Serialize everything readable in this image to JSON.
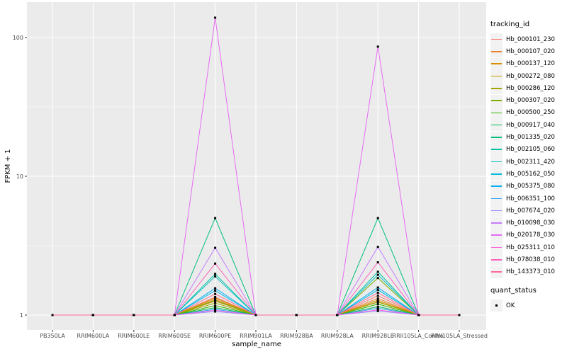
{
  "figure": {
    "panel_background": "#EBEBEB",
    "gridline_color": "#FFFFFF",
    "axis_text_color": "#4D4D4D",
    "axis_title_color": "#000000",
    "tick_mark_color": "#333333",
    "point_color": "#000000"
  },
  "legend": {
    "tracking_title": "tracking_id",
    "quant_title": "quant_status",
    "quant_items": [
      {
        "label": "OK",
        "marker": "black-square"
      }
    ]
  },
  "chart_data": {
    "type": "line",
    "title": "",
    "xlabel": "sample_name",
    "ylabel": "FPKM + 1",
    "yscale": "log10",
    "ylim": [
      1,
      180
    ],
    "y_major_ticks": [
      1,
      10,
      100
    ],
    "y_tick_labels": [
      "1",
      "10",
      "100"
    ],
    "grid": true,
    "legend_position": "right",
    "point_marker": "black-square",
    "x": [
      "PB350LA",
      "RRIM600LA",
      "RRIM600LE",
      "RRIM600SE",
      "RRIM600PE",
      "RRIM901LA",
      "RRIM928BA",
      "RRIM928LA",
      "RRIM928LE",
      "RRII105LA_Control",
      "RRII105LA_Stressed"
    ],
    "series": [
      {
        "name": "Hb_000101_230",
        "color": "#F8766D",
        "values": [
          1,
          1,
          1,
          1,
          1.35,
          1,
          1,
          1,
          1.38,
          1,
          1
        ]
      },
      {
        "name": "Hb_000107_020",
        "color": "#EA8331",
        "values": [
          1,
          1,
          1,
          1,
          1.3,
          1,
          1,
          1,
          1.32,
          1,
          1
        ]
      },
      {
        "name": "Hb_000137_120",
        "color": "#D89000",
        "values": [
          1,
          1,
          1,
          1,
          1.33,
          1,
          1,
          1,
          1.28,
          1,
          1
        ]
      },
      {
        "name": "Hb_000272_080",
        "color": "#C09B00",
        "values": [
          1,
          1,
          1,
          1,
          1.26,
          1,
          1,
          1,
          1.25,
          1,
          1
        ]
      },
      {
        "name": "Hb_000286_120",
        "color": "#A3A500",
        "values": [
          1,
          1,
          1,
          1,
          1.22,
          1,
          1,
          1,
          1.24,
          1,
          1
        ]
      },
      {
        "name": "Hb_000307_020",
        "color": "#7CAE00",
        "values": [
          1,
          1,
          1,
          1,
          1.28,
          1,
          1,
          1,
          1.85,
          1,
          1
        ]
      },
      {
        "name": "Hb_000500_250",
        "color": "#39B600",
        "values": [
          1,
          1,
          1,
          1,
          1.17,
          1,
          1,
          1,
          1.2,
          1,
          1
        ]
      },
      {
        "name": "Hb_000917_040",
        "color": "#00BB4E",
        "values": [
          1,
          1,
          1,
          1,
          1.13,
          1,
          1,
          1,
          1.15,
          1,
          1
        ]
      },
      {
        "name": "Hb_001335_020",
        "color": "#00BF7D",
        "values": [
          1,
          1,
          1,
          1,
          5.0,
          1,
          1,
          1,
          5.0,
          1,
          1
        ]
      },
      {
        "name": "Hb_002105_060",
        "color": "#00C1A3",
        "values": [
          1,
          1,
          1,
          1,
          1.98,
          1,
          1,
          1,
          2.05,
          1,
          1
        ]
      },
      {
        "name": "Hb_002311_420",
        "color": "#00BFC4",
        "values": [
          1,
          1,
          1,
          1,
          1.9,
          1,
          1,
          1,
          1.95,
          1,
          1
        ]
      },
      {
        "name": "Hb_005162_050",
        "color": "#00BAE0",
        "values": [
          1,
          1,
          1,
          1,
          1.5,
          1,
          1,
          1,
          1.52,
          1,
          1
        ]
      },
      {
        "name": "Hb_005375_080",
        "color": "#00B0F6",
        "values": [
          1,
          1,
          1,
          1,
          1.56,
          1,
          1,
          1,
          1.58,
          1,
          1
        ]
      },
      {
        "name": "Hb_006351_100",
        "color": "#35A2FF",
        "values": [
          1,
          1,
          1,
          1,
          1.1,
          1,
          1,
          1,
          1.12,
          1,
          1
        ]
      },
      {
        "name": "Hb_007674_020",
        "color": "#9590FF",
        "values": [
          1,
          1,
          1,
          1,
          1.06,
          1,
          1,
          1,
          1.07,
          1,
          1
        ]
      },
      {
        "name": "Hb_010098_030",
        "color": "#C77CFF",
        "values": [
          1,
          1,
          1,
          1,
          3.05,
          1,
          1,
          1,
          3.1,
          1,
          1
        ]
      },
      {
        "name": "Hb_020178_030",
        "color": "#E76BF3",
        "values": [
          1,
          1,
          1,
          1,
          139,
          1,
          1,
          1,
          86,
          1,
          1
        ]
      },
      {
        "name": "Hb_025311_010",
        "color": "#FA62DB",
        "values": [
          1,
          1,
          1,
          1,
          1.08,
          1,
          1,
          1,
          1.09,
          1,
          1
        ]
      },
      {
        "name": "Hb_078038_010",
        "color": "#FF62BC",
        "values": [
          1,
          1,
          1,
          1,
          2.35,
          1,
          1,
          1,
          2.4,
          1,
          1
        ]
      },
      {
        "name": "Hb_143373_010",
        "color": "#FF6A98",
        "values": [
          1,
          1,
          1,
          1,
          1.42,
          1,
          1,
          1,
          1.45,
          1,
          1
        ]
      }
    ]
  }
}
